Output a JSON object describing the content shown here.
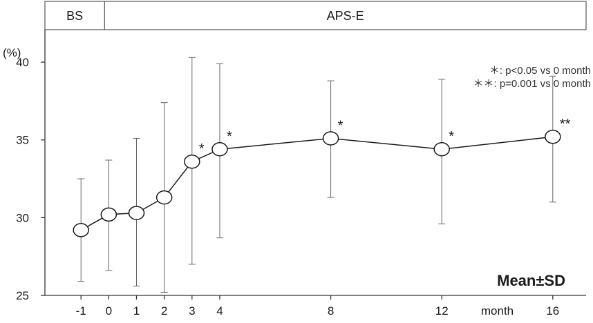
{
  "chart_data": {
    "type": "line",
    "header_segments": [
      {
        "label": "BS",
        "from_x": -2.3,
        "to_x": -0.15
      },
      {
        "label": "APS-E",
        "from_x": -0.15,
        "to_x": 17.2
      }
    ],
    "ylabel": "(%)",
    "xlabel": "month",
    "ylim": [
      25,
      42
    ],
    "xlim": [
      -2.3,
      17.2
    ],
    "y_ticks": [
      25,
      30,
      35,
      40
    ],
    "x_ticks": [
      {
        "value": -1,
        "label": "-1"
      },
      {
        "value": 0,
        "label": "0"
      },
      {
        "value": 1,
        "label": "1"
      },
      {
        "value": 2,
        "label": "2"
      },
      {
        "value": 3,
        "label": "3"
      },
      {
        "value": 4,
        "label": "4"
      },
      {
        "value": 8,
        "label": "8"
      },
      {
        "value": 12,
        "label": "12"
      },
      {
        "value": 16,
        "label": "16"
      }
    ],
    "x_unit_label": {
      "text": "month",
      "at_x": 14
    },
    "points": [
      {
        "x": -1,
        "y": 29.2,
        "upper": 32.5,
        "lower": 25.9,
        "mark": ""
      },
      {
        "x": 0,
        "y": 30.2,
        "upper": 33.7,
        "lower": 26.6,
        "mark": ""
      },
      {
        "x": 1,
        "y": 30.3,
        "upper": 35.1,
        "lower": 25.6,
        "mark": ""
      },
      {
        "x": 2,
        "y": 31.3,
        "upper": 37.4,
        "lower": 25.2,
        "mark": ""
      },
      {
        "x": 3,
        "y": 33.6,
        "upper": 40.3,
        "lower": 27.0,
        "mark": "*"
      },
      {
        "x": 4,
        "y": 34.4,
        "upper": 39.9,
        "lower": 28.7,
        "mark": "*"
      },
      {
        "x": 8,
        "y": 35.1,
        "upper": 38.8,
        "lower": 31.3,
        "mark": "*"
      },
      {
        "x": 12,
        "y": 34.4,
        "upper": 38.9,
        "lower": 29.6,
        "mark": "*"
      },
      {
        "x": 16,
        "y": 35.2,
        "upper": 39.1,
        "lower": 31.0,
        "mark": "**"
      }
    ],
    "legend_notes": [
      "＊: p<0.05 vs 0 month",
      "＊＊: p=0.001 vs 0 month"
    ],
    "stat_label": "Mean±SD",
    "grid": false,
    "colors": {
      "line": "#1a1a1a",
      "marker_fill": "#ffffff",
      "errorbar": "#666666"
    }
  }
}
